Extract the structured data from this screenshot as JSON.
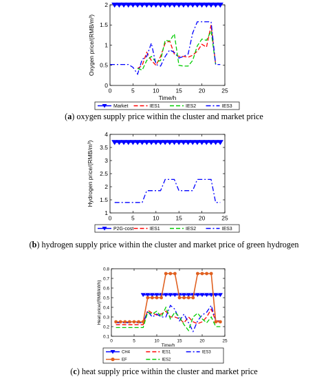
{
  "captions": {
    "a_letter": "a",
    "a_text": "oxygen supply price within the cluster and market price",
    "b_letter": "b",
    "b_text": "hydrogen supply price within the cluster and market price of green hydrogen",
    "c_letter": "c",
    "c_text": "heat supply price within the cluster and market price"
  },
  "chart_data": [
    {
      "type": "line",
      "title": "",
      "xlabel": "Time/h",
      "ylabel": "Oxygen price/(RMB/m³)",
      "xlim": [
        0,
        25
      ],
      "ylim": [
        0,
        2
      ],
      "xticks": [
        0,
        5,
        10,
        15,
        20,
        25
      ],
      "yticks": [
        0,
        0.5,
        1,
        1.5,
        2
      ],
      "legend_position": "bottom",
      "series": [
        {
          "name": "Market",
          "color": "#0000ff",
          "style": "solid-triangle",
          "x": [
            1,
            2,
            3,
            4,
            5,
            6,
            7,
            8,
            9,
            10,
            11,
            12,
            13,
            14,
            15,
            16,
            17,
            18,
            19,
            20,
            21,
            22,
            23,
            24
          ],
          "y": [
            2,
            2,
            2,
            2,
            2,
            2,
            2,
            2,
            2,
            2,
            2,
            2,
            2,
            2,
            2,
            2,
            2,
            2,
            2,
            2,
            2,
            2,
            2,
            2
          ]
        },
        {
          "name": "IES1",
          "color": "#ff0000",
          "style": "dash",
          "x": [
            6,
            7,
            8,
            9,
            10,
            11,
            12,
            13,
            14,
            15,
            16,
            17,
            18,
            19,
            20,
            21,
            22,
            23
          ],
          "y": [
            0.42,
            0.5,
            0.82,
            0.62,
            0.5,
            0.72,
            1.05,
            1.1,
            0.78,
            0.72,
            0.72,
            0.7,
            0.75,
            0.85,
            1.02,
            0.95,
            1.5,
            0.52
          ]
        },
        {
          "name": "IES2",
          "color": "#00cc00",
          "style": "dash",
          "x": [
            6,
            7,
            8,
            9,
            10,
            11,
            12,
            13,
            14,
            15,
            16,
            17,
            18,
            19,
            20,
            21,
            22,
            23
          ],
          "y": [
            0.42,
            0.38,
            0.62,
            0.72,
            0.58,
            0.62,
            1.12,
            1.1,
            1.28,
            0.5,
            0.48,
            0.48,
            0.62,
            0.98,
            1.15,
            1.12,
            1.35,
            0.52
          ]
        },
        {
          "name": "IES3",
          "color": "#0000ff",
          "style": "dash-dot",
          "x": [
            0,
            1,
            2,
            3,
            4,
            5,
            6,
            7,
            8,
            9,
            10,
            11,
            12,
            13,
            14,
            15,
            16,
            17,
            18,
            19,
            20,
            21,
            22,
            23,
            24
          ],
          "y": [
            0.52,
            0.52,
            0.52,
            0.52,
            0.52,
            0.45,
            0.28,
            0.65,
            0.72,
            1.05,
            0.52,
            0.48,
            0.72,
            0.88,
            0.82,
            0.68,
            0.72,
            0.78,
            1.3,
            1.58,
            1.58,
            1.58,
            1.58,
            0.52,
            0.52
          ]
        }
      ]
    },
    {
      "type": "line",
      "title": "",
      "xlabel": "",
      "ylabel": "Hydrogen price/(RMB/m³)",
      "xlim": [
        0,
        25
      ],
      "ylim": [
        1,
        4
      ],
      "xticks": [
        0,
        5,
        10,
        15,
        20,
        25
      ],
      "yticks": [
        1,
        1.5,
        2,
        2.5,
        3,
        3.5,
        4
      ],
      "legend_position": "bottom",
      "series": [
        {
          "name": "P2G-cost",
          "color": "#0000ff",
          "style": "solid-triangle",
          "x": [
            1,
            2,
            3,
            4,
            5,
            6,
            7,
            8,
            9,
            10,
            11,
            12,
            13,
            14,
            15,
            16,
            17,
            18,
            19,
            20,
            21,
            22,
            23,
            24
          ],
          "y": [
            3.7,
            3.7,
            3.7,
            3.7,
            3.7,
            3.7,
            3.7,
            3.7,
            3.7,
            3.7,
            3.7,
            3.7,
            3.7,
            3.7,
            3.7,
            3.7,
            3.7,
            3.7,
            3.7,
            3.7,
            3.7,
            3.7,
            3.7,
            3.7
          ]
        },
        {
          "name": "IES1",
          "color": "#ff0000",
          "style": "dash",
          "x": [],
          "y": []
        },
        {
          "name": "IES2",
          "color": "#00cc00",
          "style": "dash",
          "x": [],
          "y": []
        },
        {
          "name": "IES3",
          "color": "#0000ff",
          "style": "dash-dot",
          "x": [
            1,
            2,
            3,
            4,
            5,
            6,
            7,
            8,
            9,
            10,
            11,
            12,
            13,
            14,
            15,
            16,
            17,
            18,
            19,
            20,
            21,
            22,
            23,
            24
          ],
          "y": [
            1.4,
            1.4,
            1.4,
            1.4,
            1.4,
            1.4,
            1.4,
            1.85,
            1.85,
            1.85,
            1.85,
            2.28,
            2.28,
            2.28,
            1.85,
            1.85,
            1.85,
            1.85,
            2.28,
            2.28,
            2.28,
            2.28,
            1.4,
            1.4
          ]
        }
      ]
    },
    {
      "type": "line",
      "title": "",
      "xlabel": "Time/h",
      "ylabel": "Heat price/(RMB/kWh)",
      "xlim": [
        0,
        25
      ],
      "ylim": [
        0.1,
        0.8
      ],
      "xticks": [
        0,
        5,
        10,
        15,
        20,
        25
      ],
      "yticks": [
        0.1,
        0.2,
        0.3,
        0.4,
        0.5,
        0.6,
        0.7,
        0.8
      ],
      "legend_position": "bottom",
      "series": [
        {
          "name": "CH4",
          "color": "#0000ff",
          "style": "solid-triangle",
          "x": [
            7,
            8,
            9,
            10,
            11,
            12,
            13,
            14,
            15,
            16,
            17,
            18,
            19,
            20,
            21,
            22,
            23,
            24
          ],
          "y": [
            0.53,
            0.53,
            0.53,
            0.53,
            0.53,
            0.53,
            0.53,
            0.53,
            0.53,
            0.53,
            0.53,
            0.53,
            0.53,
            0.53,
            0.53,
            0.53,
            0.53,
            0.53
          ]
        },
        {
          "name": "IES1",
          "color": "#ff0000",
          "style": "dash",
          "x": [
            1,
            2,
            3,
            4,
            5,
            6,
            7,
            8,
            9,
            10,
            11,
            12,
            13,
            14,
            15,
            16,
            17,
            18,
            19,
            20,
            21,
            22,
            23,
            24
          ],
          "y": [
            0.22,
            0.22,
            0.22,
            0.22,
            0.22,
            0.22,
            0.22,
            0.37,
            0.34,
            0.32,
            0.33,
            0.36,
            0.3,
            0.3,
            0.28,
            0.24,
            0.3,
            0.25,
            0.23,
            0.25,
            0.3,
            0.38,
            0.26,
            0.26
          ]
        },
        {
          "name": "IES3",
          "color": "#0000ff",
          "style": "dash-dot",
          "x": [
            1,
            2,
            3,
            4,
            5,
            6,
            7,
            8,
            9,
            10,
            11,
            12,
            13,
            14,
            15,
            16,
            17,
            18,
            19,
            20,
            21,
            22,
            23,
            24
          ],
          "y": [
            0.24,
            0.24,
            0.24,
            0.24,
            0.24,
            0.24,
            0.24,
            0.36,
            0.3,
            0.33,
            0.3,
            0.3,
            0.42,
            0.38,
            0.26,
            0.33,
            0.24,
            0.15,
            0.26,
            0.32,
            0.35,
            0.42,
            0.26,
            0.26
          ]
        },
        {
          "name": "EF",
          "color": "#e06020",
          "style": "solid-circle",
          "x": [
            1,
            2,
            3,
            4,
            5,
            6,
            7,
            8,
            9,
            10,
            11,
            12,
            13,
            14,
            15,
            16,
            17,
            18,
            19,
            20,
            21,
            22,
            23,
            24
          ],
          "y": [
            0.25,
            0.25,
            0.25,
            0.25,
            0.25,
            0.25,
            0.25,
            0.5,
            0.5,
            0.5,
            0.5,
            0.75,
            0.75,
            0.75,
            0.5,
            0.5,
            0.5,
            0.5,
            0.75,
            0.75,
            0.75,
            0.75,
            0.25,
            0.25
          ]
        },
        {
          "name": "IES2",
          "color": "#00cc00",
          "style": "dash",
          "x": [
            1,
            2,
            3,
            4,
            5,
            6,
            7,
            8,
            9,
            10,
            11,
            12,
            13,
            14,
            15,
            16,
            17,
            18,
            19,
            20,
            21,
            22,
            23,
            24
          ],
          "y": [
            0.19,
            0.19,
            0.19,
            0.19,
            0.19,
            0.19,
            0.19,
            0.35,
            0.33,
            0.36,
            0.3,
            0.4,
            0.28,
            0.35,
            0.3,
            0.22,
            0.16,
            0.3,
            0.34,
            0.28,
            0.24,
            0.3,
            0.2,
            0.2
          ]
        }
      ]
    }
  ]
}
